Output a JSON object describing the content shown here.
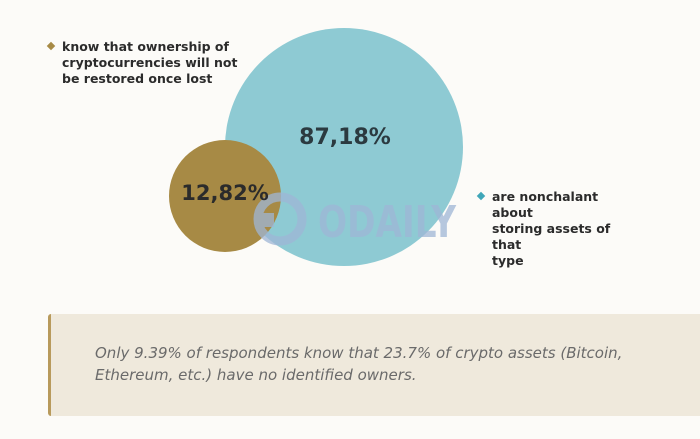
{
  "chart_data": {
    "type": "bubble",
    "series": [
      {
        "name": "are nonchalant about storing assets of that type",
        "value": 87.18,
        "label": "87,18%",
        "color": "#8ecad3",
        "marker_color": "#3fa6b8"
      },
      {
        "name": "know that ownership of cryptocurrencies will not be restored once lost",
        "value": 12.82,
        "label": "12,82%",
        "color": "#a78a45",
        "marker_color": "#a78a45"
      }
    ]
  },
  "legend": {
    "known_lines": [
      "know that ownership of",
      "cryptocurrencies will not",
      "be restored once lost"
    ],
    "nonchalant_lines": [
      "are nonchalant about",
      "storing assets of that",
      "type"
    ]
  },
  "watermark": {
    "text": "ODAILY",
    "color": "#9fb6d6"
  },
  "callout": {
    "text": "Only 9.39% of respondents know that 23.7% of crypto assets (Bitcoin, Ethereum, etc.) have no identified owners.",
    "border_color": "#b89a5c",
    "background": "#efe9dc"
  }
}
